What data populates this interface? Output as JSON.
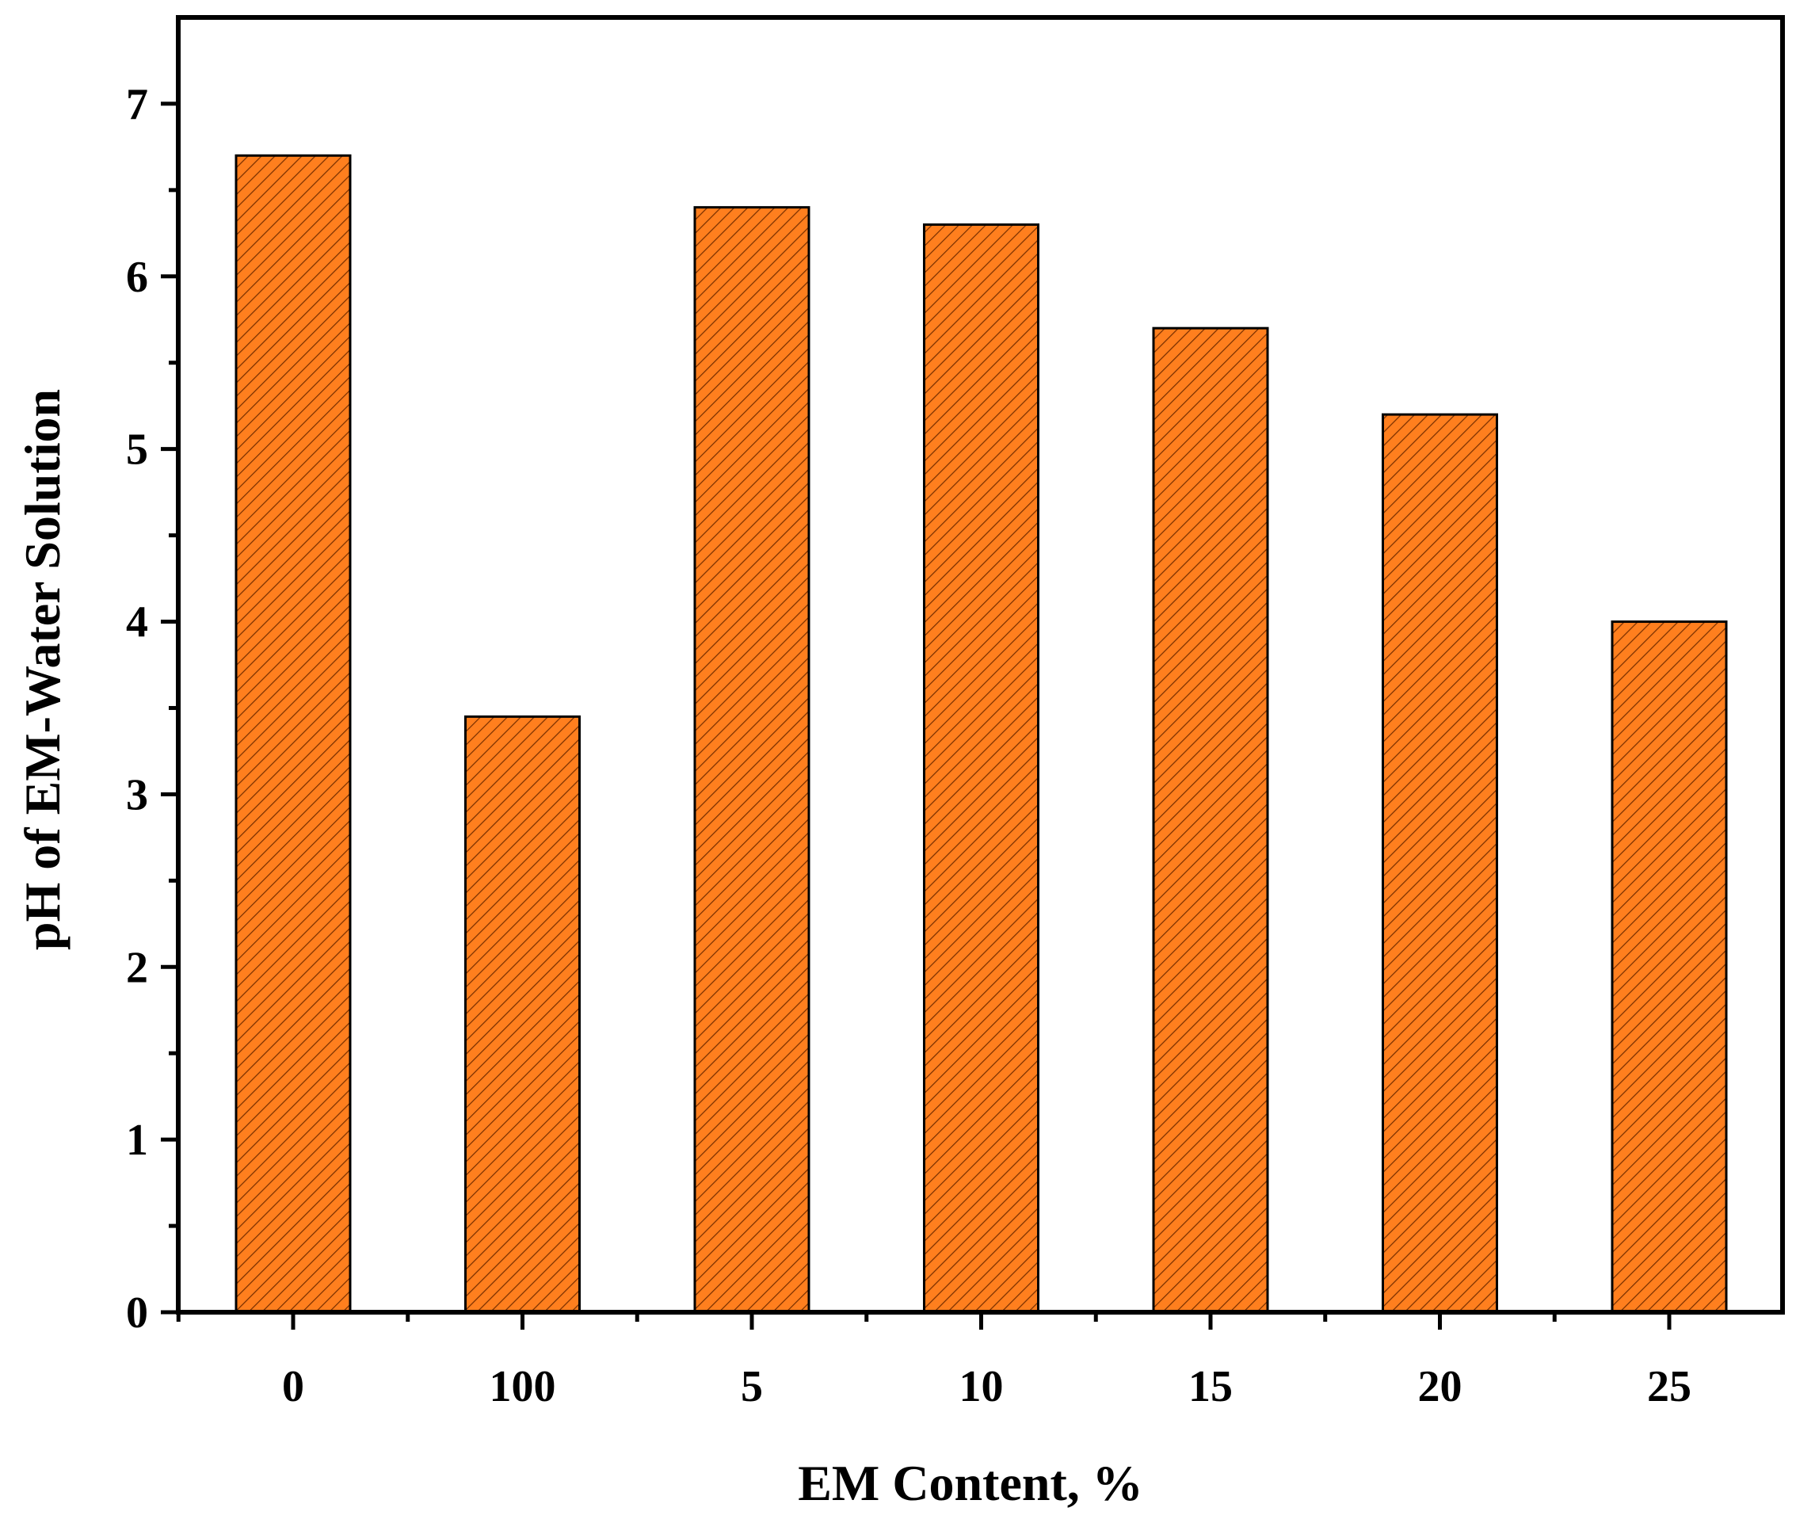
{
  "chart_data": {
    "type": "bar",
    "title": "",
    "xlabel": "EM Content, %",
    "ylabel": "pH of EM-Water Solution",
    "categories": [
      "0",
      "100",
      "5",
      "10",
      "15",
      "20",
      "25"
    ],
    "values": [
      6.7,
      3.45,
      6.4,
      6.3,
      5.7,
      5.2,
      4.0
    ],
    "ylim": [
      0,
      7.5
    ],
    "yticks": [
      "0",
      "1",
      "2",
      "3",
      "4",
      "5",
      "6",
      "7"
    ],
    "grid": false,
    "legend": "none",
    "bar_color": "#FF7F1E",
    "bar_hatch": "diagonal",
    "bar_edge_color": "#000000"
  }
}
